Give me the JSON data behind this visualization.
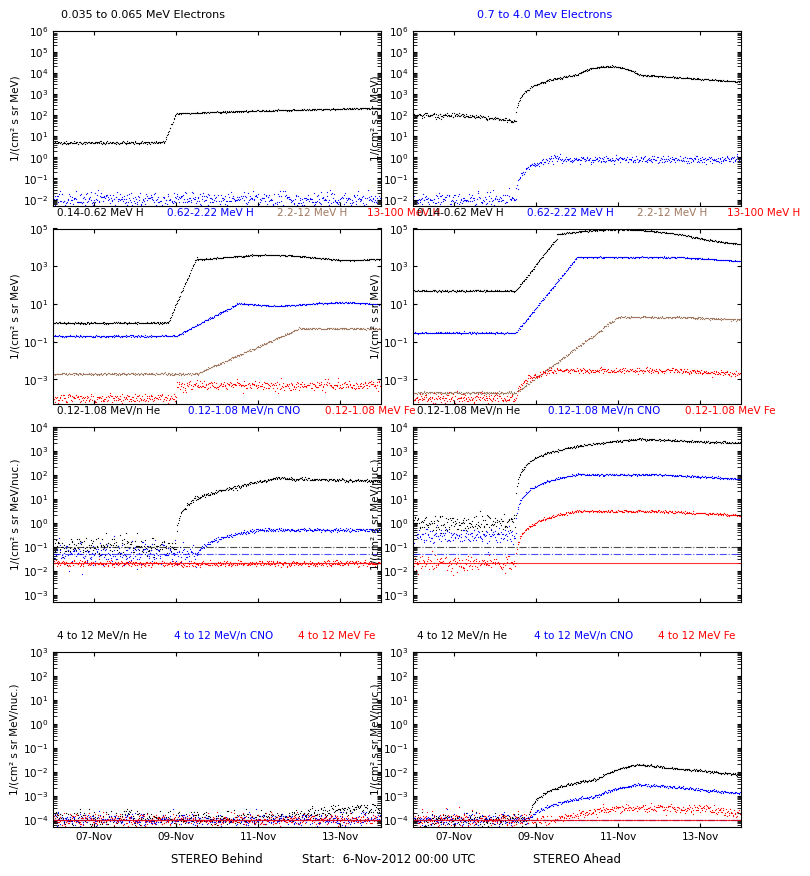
{
  "title_row1_left": "0.035 to 0.065 MeV Electrons",
  "title_row1_right": "0.7 to 4.0 Mev Electrons",
  "title_row2_left": "0.14-0.62 MeV H",
  "title_row2_blue": "0.62-2.22 MeV H",
  "title_row2_brown": "2.2-12 MeV H",
  "title_row2_red": "13-100 MeV H",
  "title_row3_black": "0.12-1.08 MeV/n He",
  "title_row3_blue": "0.12-1.08 MeV/n CNO",
  "title_row3_red": "0.12-1.08 MeV Fe",
  "title_row4_black": "4 to 12 MeV/n He",
  "title_row4_blue": "4 to 12 MeV/n CNO",
  "title_row4_red": "4 to 12 MeV Fe",
  "ylabel_electrons": "1/(cm² s sr MeV)",
  "ylabel_H": "1/(cm² s sr MeV)",
  "ylabel_heavy": "1/(cm² s sr MeV/nuc.)",
  "xlabel_left": "STEREO Behind",
  "xlabel_center": "Start:  6-Nov-2012 00:00 UTC",
  "xlabel_right": "STEREO Ahead",
  "xtick_labels": [
    "07-Nov",
    "09-Nov",
    "11-Nov",
    "13-Nov"
  ],
  "color_black": "#000000",
  "color_blue": "#0000ff",
  "color_brown": "#a07860",
  "color_red": "#ff0000",
  "background_color": "#ffffff",
  "seed": 42
}
